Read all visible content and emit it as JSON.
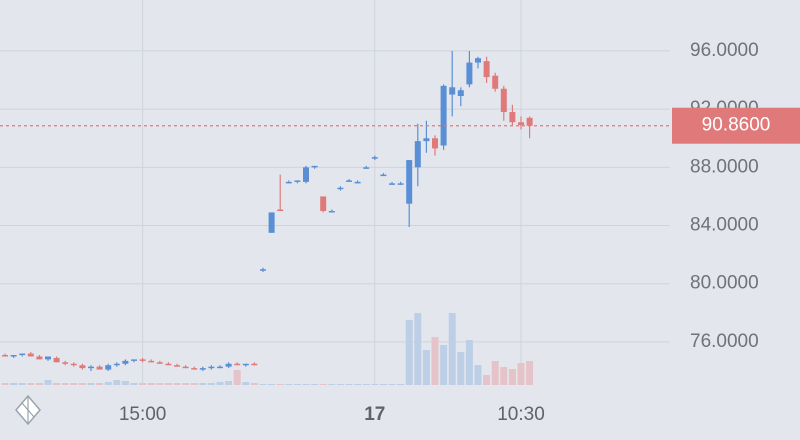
{
  "chart_data": {
    "type": "candlestick",
    "categories": [
      null,
      null,
      null,
      null,
      null,
      null,
      null,
      null,
      null,
      null,
      null,
      null,
      null,
      null,
      null,
      null,
      "15:00",
      null,
      null,
      null,
      null,
      null,
      null,
      null,
      null,
      null,
      null,
      null,
      null,
      null,
      null,
      null,
      null,
      null,
      null,
      null,
      null,
      null,
      null,
      null,
      null,
      null,
      null,
      "17",
      null,
      null,
      null,
      null,
      null,
      null,
      null,
      null,
      null,
      null,
      null,
      null,
      null,
      null,
      null,
      null,
      "10:30",
      null
    ],
    "open": [
      75.1,
      75.0,
      75.1,
      75.2,
      75.0,
      74.8,
      74.9,
      74.6,
      74.5,
      74.4,
      74.2,
      74.3,
      74.1,
      74.4,
      74.5,
      74.7,
      74.8,
      74.7,
      74.6,
      74.5,
      74.4,
      74.3,
      74.2,
      74.1,
      74.2,
      74.3,
      74.3,
      74.5,
      74.4,
      74.5,
      80.9,
      83.5,
      85.1,
      87.0,
      87.0,
      87.0,
      88.0,
      86.0,
      85.0,
      86.5,
      87.1,
      87.0,
      88.0,
      88.6,
      87.5,
      86.9,
      86.9,
      85.5,
      88.0,
      89.8,
      90.0,
      89.5,
      93.0,
      92.9,
      93.7,
      95.2,
      95.3,
      94.3,
      93.4,
      91.8,
      91.1,
      91.4
    ],
    "high": [
      75.2,
      75.1,
      75.2,
      75.3,
      75.1,
      75.0,
      75.0,
      74.7,
      74.6,
      74.5,
      74.4,
      74.4,
      74.5,
      74.6,
      74.8,
      74.8,
      74.9,
      74.8,
      74.7,
      74.6,
      74.5,
      74.4,
      74.3,
      74.3,
      74.4,
      74.4,
      74.6,
      74.6,
      74.5,
      74.6,
      81.1,
      84.9,
      87.5,
      87.1,
      87.1,
      88.1,
      88.1,
      86.0,
      85.1,
      86.7,
      87.2,
      87.1,
      88.1,
      88.8,
      87.6,
      87.0,
      87.0,
      88.5,
      91.0,
      91.2,
      90.2,
      93.7,
      96.0,
      93.5,
      96.0,
      95.6,
      95.6,
      94.5,
      93.6,
      92.3,
      91.5,
      91.5
    ],
    "low": [
      75.0,
      74.9,
      75.0,
      75.0,
      74.8,
      74.7,
      74.6,
      74.4,
      74.3,
      74.1,
      74.0,
      74.1,
      74.0,
      74.3,
      74.4,
      74.6,
      74.6,
      74.6,
      74.5,
      74.4,
      74.3,
      74.2,
      74.1,
      74.0,
      74.1,
      74.2,
      74.2,
      74.4,
      74.3,
      74.4,
      80.8,
      83.5,
      85.0,
      86.9,
      86.9,
      86.9,
      87.9,
      84.9,
      84.9,
      86.4,
      87.0,
      86.9,
      87.9,
      88.5,
      87.4,
      86.8,
      86.8,
      83.9,
      86.7,
      89.0,
      88.8,
      89.2,
      91.5,
      92.2,
      93.5,
      94.8,
      93.8,
      93.2,
      91.2,
      90.9,
      90.6,
      90.0
    ],
    "close": [
      75.0,
      75.1,
      75.2,
      75.0,
      74.8,
      75.0,
      74.6,
      74.5,
      74.4,
      74.2,
      74.3,
      74.1,
      74.4,
      74.5,
      74.7,
      74.8,
      74.7,
      74.6,
      74.5,
      74.4,
      74.3,
      74.2,
      74.1,
      74.2,
      74.3,
      74.3,
      74.5,
      74.4,
      74.5,
      74.4,
      81.0,
      84.9,
      85.0,
      87.0,
      87.1,
      88.0,
      88.1,
      85.0,
      85.0,
      86.6,
      87.1,
      87.0,
      88.0,
      88.7,
      87.5,
      86.9,
      86.9,
      88.5,
      89.8,
      90.0,
      89.3,
      93.6,
      93.5,
      93.3,
      95.2,
      95.5,
      94.2,
      93.4,
      91.8,
      91.1,
      90.9,
      90.86
    ],
    "volume": {
      "values": [
        2,
        2,
        2,
        2,
        2,
        5,
        2,
        2,
        2,
        2,
        2,
        2,
        3,
        5,
        4,
        2,
        2,
        2,
        2,
        2,
        2,
        2,
        2,
        2,
        2,
        3,
        4,
        15,
        3,
        2,
        1,
        1,
        1,
        1,
        1,
        1,
        1,
        1,
        1,
        1,
        1,
        1,
        1,
        1,
        1,
        1,
        1,
        65,
        72,
        35,
        48,
        40,
        72,
        33,
        45,
        20,
        10,
        24,
        18,
        16,
        22,
        24
      ],
      "ylim": [
        0,
        100
      ],
      "up_color": "#bccfe6",
      "down_color": "#e6c3c8"
    },
    "up_color": "#5a8fd6",
    "down_color": "#e07a7a",
    "ylim": [
      73.04,
      99.5
    ],
    "yticks": [
      {
        "value": 76,
        "label": "76.0000"
      },
      {
        "value": 80,
        "label": "80.0000"
      },
      {
        "value": 84,
        "label": "84.0000"
      },
      {
        "value": 88,
        "label": "88.0000"
      },
      {
        "value": 92,
        "label": "92.0000"
      },
      {
        "value": 96,
        "label": "96.0000"
      }
    ],
    "grid": true,
    "last_price": 90.86,
    "last_price_label": "90.8600",
    "last_price_color": "#e07a7a"
  }
}
